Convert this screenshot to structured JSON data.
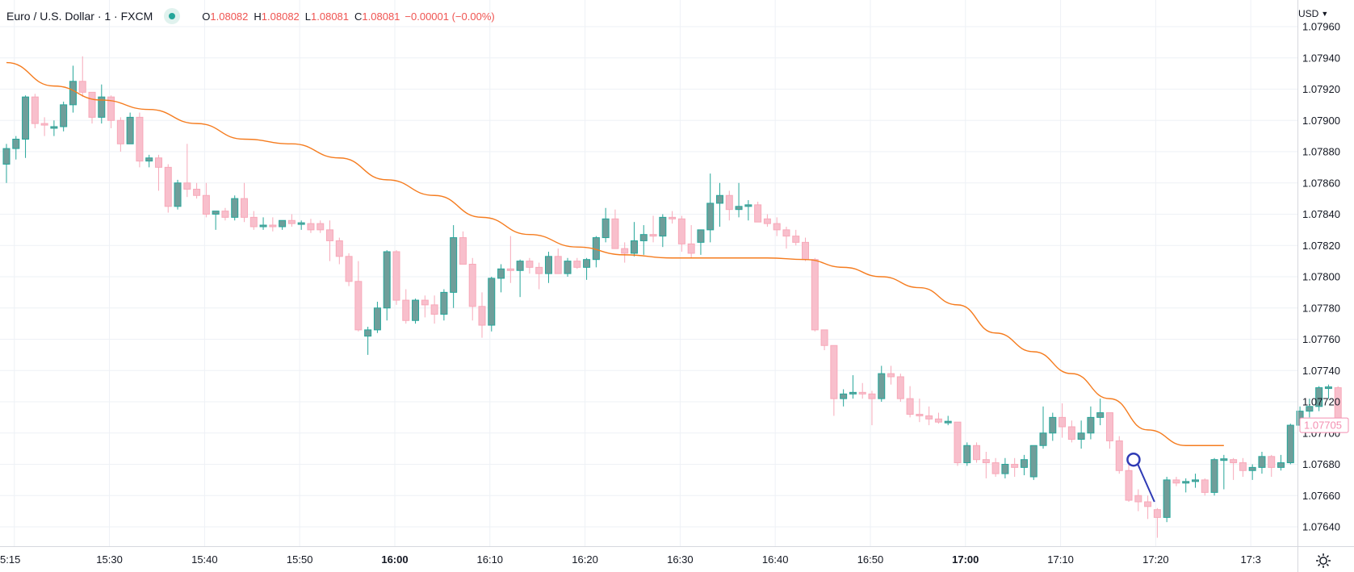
{
  "legend": {
    "symbol": "Euro / U.S. Dollar · 1 · FXCM",
    "open_label": "O",
    "open": "1.08082",
    "high_label": "H",
    "high": "1.08082",
    "low_label": "L",
    "low": "1.08081",
    "close_label": "C",
    "close": "1.08081",
    "change": "−0.00001 (−0.00%)",
    "status_color": "#26a69a"
  },
  "price_scale": {
    "currency": "USD"
  },
  "colors": {
    "up": "#26a69a",
    "up_fill": "#6f9e9a",
    "down": "#f7a9b9",
    "down_fill": "#f8bfcc",
    "ma": "#f57c1f",
    "grid": "#eef1f6",
    "price_label_bg": "#ffffff",
    "price_label_text": "#f48fb1",
    "drawing": "#2f3bb5"
  },
  "chart_data": {
    "type": "candlestick",
    "timeframe_minutes": 1,
    "yaxis": {
      "range": [
        1.07628,
        1.07962
      ],
      "ticks": [
        "1.07960",
        "1.07940",
        "1.07920",
        "1.07900",
        "1.07880",
        "1.07860",
        "1.07840",
        "1.07820",
        "1.07800",
        "1.07780",
        "1.07760",
        "1.07740",
        "1.07720",
        "1.07700",
        "1.07680",
        "1.07660",
        "1.07640"
      ]
    },
    "xaxis": {
      "start_time": "15:14",
      "ticks": [
        {
          "label": "5:15",
          "bold": false
        },
        {
          "label": "15:30",
          "bold": false
        },
        {
          "label": "15:40",
          "bold": false
        },
        {
          "label": "15:50",
          "bold": false
        },
        {
          "label": "16:00",
          "bold": true
        },
        {
          "label": "16:10",
          "bold": false
        },
        {
          "label": "16:20",
          "bold": false
        },
        {
          "label": "16:30",
          "bold": false
        },
        {
          "label": "16:40",
          "bold": false
        },
        {
          "label": "16:50",
          "bold": false
        },
        {
          "label": "17:00",
          "bold": true
        },
        {
          "label": "17:10",
          "bold": false
        },
        {
          "label": "17:20",
          "bold": false
        },
        {
          "label": "17:3",
          "bold": false
        }
      ]
    },
    "last_price": "1.07705",
    "candles": [
      [
        1.07872,
        1.07885,
        1.0786,
        1.07882
      ],
      [
        1.07882,
        1.0789,
        1.07875,
        1.07888
      ],
      [
        1.07888,
        1.07916,
        1.07876,
        1.07915
      ],
      [
        1.07915,
        1.07917,
        1.07895,
        1.07898
      ],
      [
        1.07898,
        1.07902,
        1.0789,
        1.07897
      ],
      [
        1.07895,
        1.079,
        1.0789,
        1.07896
      ],
      [
        1.07896,
        1.07912,
        1.07893,
        1.0791
      ],
      [
        1.0791,
        1.07935,
        1.07905,
        1.07925
      ],
      [
        1.07925,
        1.07941,
        1.07915,
        1.07918
      ],
      [
        1.07918,
        1.07918,
        1.07898,
        1.07902
      ],
      [
        1.07902,
        1.07923,
        1.07898,
        1.07915
      ],
      [
        1.07915,
        1.07916,
        1.07895,
        1.079
      ],
      [
        1.079,
        1.07902,
        1.0788,
        1.07885
      ],
      [
        1.07885,
        1.07905,
        1.07885,
        1.07902
      ],
      [
        1.07902,
        1.07905,
        1.0787,
        1.07874
      ],
      [
        1.07874,
        1.07878,
        1.0787,
        1.07876
      ],
      [
        1.07876,
        1.07878,
        1.07855,
        1.0787
      ],
      [
        1.0787,
        1.07872,
        1.07841,
        1.07845
      ],
      [
        1.07845,
        1.07862,
        1.07843,
        1.0786
      ],
      [
        1.0786,
        1.07885,
        1.07851,
        1.07856
      ],
      [
        1.07856,
        1.0786,
        1.0785,
        1.07852
      ],
      [
        1.07852,
        1.0786,
        1.07838,
        1.0784
      ],
      [
        1.0784,
        1.07842,
        1.0783,
        1.07842
      ],
      [
        1.07842,
        1.07844,
        1.07836,
        1.07838
      ],
      [
        1.07838,
        1.07852,
        1.07836,
        1.0785
      ],
      [
        1.0785,
        1.0786,
        1.07835,
        1.07838
      ],
      [
        1.07838,
        1.07842,
        1.0783,
        1.07832
      ],
      [
        1.07832,
        1.07838,
        1.0783,
        1.07833
      ],
      [
        1.07833,
        1.07838,
        1.07829,
        1.07832
      ],
      [
        1.07832,
        1.07836,
        1.0783,
        1.07836
      ],
      [
        1.07836,
        1.0784,
        1.07832,
        1.07834
      ],
      [
        1.07834,
        1.07836,
        1.0783,
        1.07834
      ],
      [
        1.07834,
        1.07837,
        1.07828,
        1.0783
      ],
      [
        1.07834,
        1.07836,
        1.07828,
        1.0783
      ],
      [
        1.0783,
        1.07836,
        1.0781,
        1.07823
      ],
      [
        1.07823,
        1.07825,
        1.07808,
        1.07813
      ],
      [
        1.07813,
        1.07815,
        1.07794,
        1.07797
      ],
      [
        1.07797,
        1.0781,
        1.07765,
        1.07766
      ],
      [
        1.07762,
        1.07768,
        1.0775,
        1.07766
      ],
      [
        1.07766,
        1.07784,
        1.07764,
        1.0778
      ],
      [
        1.0778,
        1.07817,
        1.07772,
        1.07816
      ],
      [
        1.07816,
        1.07817,
        1.07782,
        1.07785
      ],
      [
        1.07785,
        1.07792,
        1.0777,
        1.07772
      ],
      [
        1.07772,
        1.07786,
        1.0777,
        1.07785
      ],
      [
        1.07785,
        1.07788,
        1.07774,
        1.07782
      ],
      [
        1.07782,
        1.07788,
        1.0777,
        1.07776
      ],
      [
        1.07776,
        1.07792,
        1.07772,
        1.0779
      ],
      [
        1.0779,
        1.07833,
        1.0778,
        1.07825
      ],
      [
        1.07825,
        1.07829,
        1.0781,
        1.07808
      ],
      [
        1.07808,
        1.07812,
        1.07772,
        1.07781
      ],
      [
        1.07781,
        1.0779,
        1.07761,
        1.07769
      ],
      [
        1.07769,
        1.078,
        1.07765,
        1.07799
      ],
      [
        1.07799,
        1.07808,
        1.0779,
        1.07805
      ],
      [
        1.07805,
        1.07826,
        1.07796,
        1.07804
      ],
      [
        1.07804,
        1.07811,
        1.07787,
        1.0781
      ],
      [
        1.0781,
        1.07812,
        1.07802,
        1.07806
      ],
      [
        1.07806,
        1.07809,
        1.07792,
        1.07802
      ],
      [
        1.07802,
        1.07816,
        1.07796,
        1.07813
      ],
      [
        1.07813,
        1.07818,
        1.07802,
        1.07802
      ],
      [
        1.07802,
        1.07812,
        1.078,
        1.0781
      ],
      [
        1.0781,
        1.07812,
        1.07805,
        1.07806
      ],
      [
        1.07806,
        1.07812,
        1.07798,
        1.07811
      ],
      [
        1.07811,
        1.07826,
        1.07806,
        1.07825
      ],
      [
        1.07825,
        1.07844,
        1.07822,
        1.07837
      ],
      [
        1.07837,
        1.07843,
        1.07819,
        1.07818
      ],
      [
        1.07818,
        1.07822,
        1.07809,
        1.07815
      ],
      [
        1.07815,
        1.07835,
        1.07813,
        1.07823
      ],
      [
        1.07823,
        1.07833,
        1.07814,
        1.07827
      ],
      [
        1.07827,
        1.07839,
        1.07822,
        1.07826
      ],
      [
        1.07826,
        1.0784,
        1.07819,
        1.07838
      ],
      [
        1.07838,
        1.07842,
        1.07834,
        1.07837
      ],
      [
        1.07837,
        1.07839,
        1.07816,
        1.07821
      ],
      [
        1.07821,
        1.07833,
        1.07812,
        1.07815
      ],
      [
        1.07822,
        1.0783,
        1.07814,
        1.0783
      ],
      [
        1.0783,
        1.07866,
        1.07822,
        1.07847
      ],
      [
        1.07847,
        1.0786,
        1.07832,
        1.07852
      ],
      [
        1.07852,
        1.07855,
        1.07836,
        1.07843
      ],
      [
        1.07843,
        1.0786,
        1.07838,
        1.07845
      ],
      [
        1.07845,
        1.07849,
        1.07836,
        1.07846
      ],
      [
        1.07846,
        1.07848,
        1.07835,
        1.07835
      ],
      [
        1.07837,
        1.0784,
        1.07832,
        1.07834
      ],
      [
        1.07834,
        1.07838,
        1.07826,
        1.0783
      ],
      [
        1.0783,
        1.07832,
        1.07818,
        1.07826
      ],
      [
        1.07826,
        1.0783,
        1.0782,
        1.07822
      ],
      [
        1.07822,
        1.07825,
        1.0781,
        1.07811
      ],
      [
        1.07811,
        1.07812,
        1.07765,
        1.07766
      ],
      [
        1.07766,
        1.07766,
        1.07753,
        1.07756
      ],
      [
        1.07756,
        1.07756,
        1.07711,
        1.07722
      ],
      [
        1.07722,
        1.07728,
        1.07717,
        1.07725
      ],
      [
        1.07725,
        1.07737,
        1.07722,
        1.07726
      ],
      [
        1.07726,
        1.07732,
        1.07722,
        1.07725
      ],
      [
        1.07725,
        1.07727,
        1.07705,
        1.07722
      ],
      [
        1.07722,
        1.07743,
        1.0772,
        1.07738
      ],
      [
        1.07738,
        1.07743,
        1.07731,
        1.07736
      ],
      [
        1.07736,
        1.07738,
        1.0772,
        1.07722
      ],
      [
        1.07722,
        1.0773,
        1.0771,
        1.07712
      ],
      [
        1.07712,
        1.07722,
        1.07707,
        1.07711
      ],
      [
        1.07711,
        1.07717,
        1.07705,
        1.07709
      ],
      [
        1.07709,
        1.07713,
        1.07706,
        1.07707
      ],
      [
        1.07707,
        1.07711,
        1.07705,
        1.07707
      ],
      [
        1.07707,
        1.07707,
        1.07679,
        1.07681
      ],
      [
        1.07681,
        1.07694,
        1.07679,
        1.07692
      ],
      [
        1.07692,
        1.07694,
        1.07681,
        1.07683
      ],
      [
        1.07683,
        1.07688,
        1.07671,
        1.07681
      ],
      [
        1.07681,
        1.07684,
        1.07672,
        1.07674
      ],
      [
        1.07674,
        1.07684,
        1.07671,
        1.0768
      ],
      [
        1.0768,
        1.07684,
        1.07672,
        1.07678
      ],
      [
        1.07678,
        1.07686,
        1.07673,
        1.07683
      ],
      [
        1.07672,
        1.07692,
        1.0767,
        1.07692
      ],
      [
        1.07692,
        1.07717,
        1.0769,
        1.077
      ],
      [
        1.077,
        1.07713,
        1.07695,
        1.0771
      ],
      [
        1.0771,
        1.07719,
        1.07697,
        1.07704
      ],
      [
        1.07704,
        1.07708,
        1.07694,
        1.07696
      ],
      [
        1.07696,
        1.07708,
        1.0769,
        1.077
      ],
      [
        1.077,
        1.07717,
        1.07696,
        1.0771
      ],
      [
        1.0771,
        1.07722,
        1.07705,
        1.07713
      ],
      [
        1.07713,
        1.07713,
        1.0769,
        1.07695
      ],
      [
        1.07695,
        1.07698,
        1.07674,
        1.07676
      ],
      [
        1.07676,
        1.0768,
        1.07656,
        1.07657
      ],
      [
        1.0766,
        1.07664,
        1.0765,
        1.07656
      ],
      [
        1.07656,
        1.0766,
        1.07645,
        1.07653
      ],
      [
        1.07651,
        1.07652,
        1.07633,
        1.07646
      ],
      [
        1.07646,
        1.07672,
        1.07643,
        1.0767
      ],
      [
        1.0767,
        1.07672,
        1.07666,
        1.07668
      ],
      [
        1.07668,
        1.07671,
        1.07662,
        1.07669
      ],
      [
        1.07669,
        1.07674,
        1.07665,
        1.0767
      ],
      [
        1.0767,
        1.07671,
        1.0766,
        1.07662
      ],
      [
        1.07662,
        1.07684,
        1.0766,
        1.07683
      ],
      [
        1.07683,
        1.07686,
        1.07664,
        1.07683
      ],
      [
        1.07683,
        1.07684,
        1.0767,
        1.07681
      ],
      [
        1.07681,
        1.07684,
        1.07672,
        1.07676
      ],
      [
        1.07676,
        1.0768,
        1.0767,
        1.07678
      ],
      [
        1.07678,
        1.07688,
        1.07674,
        1.07685
      ],
      [
        1.07685,
        1.07686,
        1.07672,
        1.07678
      ],
      [
        1.07678,
        1.07686,
        1.07676,
        1.07681
      ],
      [
        1.07681,
        1.07706,
        1.0768,
        1.07705
      ],
      [
        1.07705,
        1.07717,
        1.07704,
        1.07714
      ],
      [
        1.07714,
        1.07722,
        1.0771,
        1.07717
      ],
      [
        1.07717,
        1.0773,
        1.07714,
        1.07729
      ],
      [
        1.07729,
        1.07731,
        1.07722,
        1.07729
      ],
      [
        1.07729,
        1.0773,
        1.077,
        1.07705
      ]
    ],
    "moving_average": [
      [
        0,
        1.07937
      ],
      [
        5,
        1.07922
      ],
      [
        10,
        1.07913
      ],
      [
        15,
        1.07907
      ],
      [
        20,
        1.07898
      ],
      [
        25,
        1.07888
      ],
      [
        30,
        1.07885
      ],
      [
        35,
        1.07876
      ],
      [
        40,
        1.07862
      ],
      [
        45,
        1.07852
      ],
      [
        50,
        1.07838
      ],
      [
        55,
        1.07827
      ],
      [
        60,
        1.07819
      ],
      [
        65,
        1.07814
      ],
      [
        70,
        1.07812
      ],
      [
        75,
        1.07812
      ],
      [
        80,
        1.07812
      ],
      [
        84,
        1.07811
      ],
      [
        88,
        1.07806
      ],
      [
        92,
        1.078
      ],
      [
        96,
        1.07793
      ],
      [
        100,
        1.07782
      ],
      [
        104,
        1.07764
      ],
      [
        108,
        1.07752
      ],
      [
        112,
        1.07738
      ],
      [
        116,
        1.07722
      ],
      [
        120,
        1.07702
      ],
      [
        124,
        1.07692
      ],
      [
        128,
        1.07692
      ]
    ],
    "drawing": {
      "type": "trend-line",
      "start": [
        118.5,
        1.07683
      ],
      "end": [
        120.7,
        1.07656
      ],
      "anchor_circle": true
    }
  }
}
